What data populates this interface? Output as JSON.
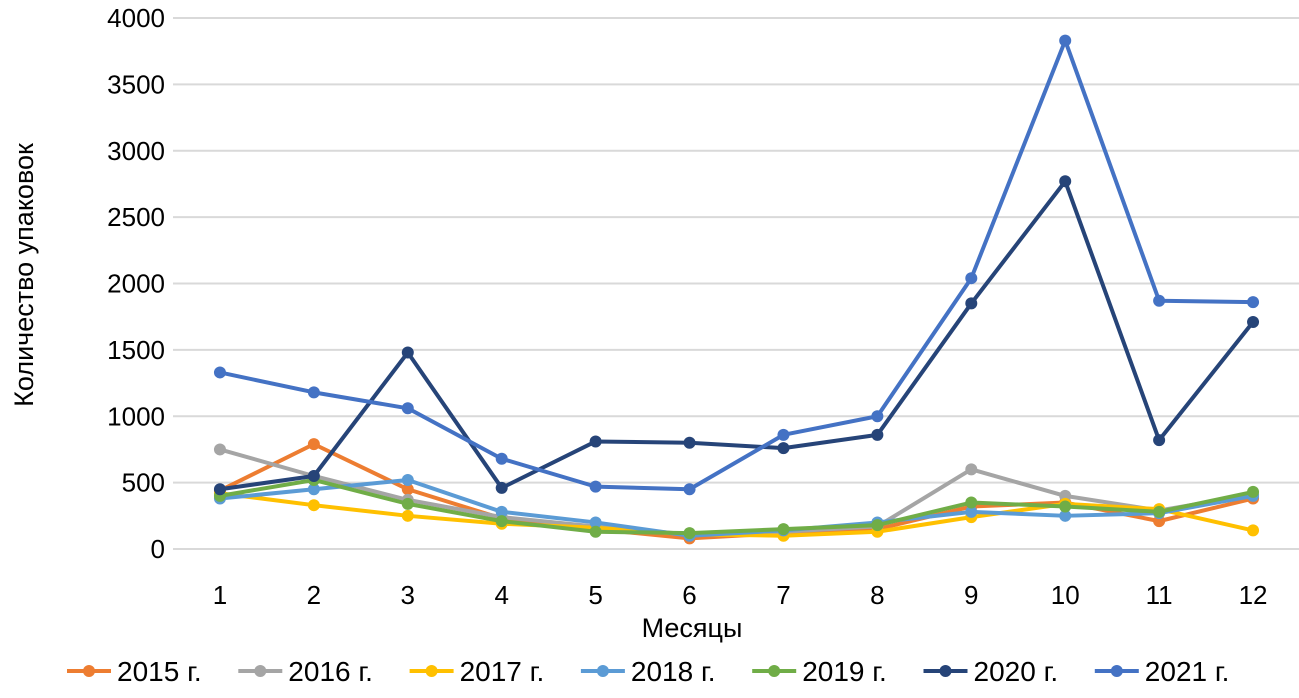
{
  "chart_data": {
    "type": "line",
    "title": "",
    "xlabel": "Месяцы",
    "ylabel": "Количество упаковок",
    "categories": [
      "1",
      "2",
      "3",
      "4",
      "5",
      "6",
      "7",
      "8",
      "9",
      "10",
      "11",
      "12"
    ],
    "ylim": [
      0,
      4000
    ],
    "yticks": [
      0,
      500,
      1000,
      1500,
      2000,
      2500,
      3000,
      3500,
      4000
    ],
    "grid": true,
    "legend_position": "bottom",
    "series": [
      {
        "name": "2015 г.",
        "color": "#ED7D31",
        "values": [
          440,
          790,
          450,
          230,
          150,
          80,
          120,
          150,
          320,
          350,
          210,
          380
        ]
      },
      {
        "name": "2016 г.",
        "color": "#A5A5A5",
        "values": [
          750,
          550,
          370,
          240,
          170,
          110,
          130,
          170,
          600,
          400,
          290,
          410
        ]
      },
      {
        "name": "2017 г.",
        "color": "#FFC000",
        "values": [
          420,
          330,
          250,
          190,
          160,
          110,
          100,
          130,
          240,
          340,
          300,
          140
        ]
      },
      {
        "name": "2018 г.",
        "color": "#5B9BD5",
        "values": [
          380,
          450,
          520,
          280,
          200,
          100,
          140,
          200,
          280,
          250,
          270,
          400
        ]
      },
      {
        "name": "2019 г.",
        "color": "#70AD47",
        "values": [
          400,
          520,
          340,
          210,
          130,
          120,
          150,
          180,
          350,
          320,
          280,
          430
        ]
      },
      {
        "name": "2020 г.",
        "color": "#264478",
        "values": [
          450,
          550,
          1480,
          460,
          810,
          800,
          760,
          860,
          1850,
          2770,
          820,
          1710
        ]
      },
      {
        "name": "2021 г.",
        "color": "#4472C4",
        "values": [
          1330,
          1180,
          1060,
          680,
          470,
          450,
          860,
          1000,
          2040,
          3830,
          1870,
          1860
        ]
      }
    ]
  }
}
